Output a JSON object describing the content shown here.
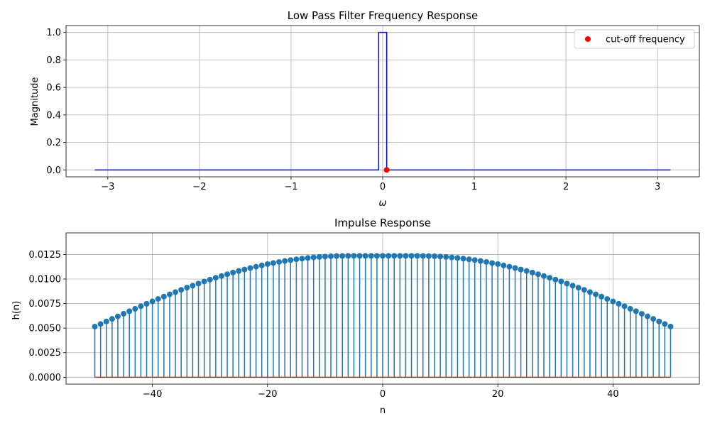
{
  "chart_data": [
    {
      "type": "line",
      "title": "Low Pass Filter Frequency Response",
      "xlabel": "ω",
      "ylabel": "Magnitude",
      "xlim": [
        -3.4558,
        3.4558
      ],
      "ylim": [
        -0.05,
        1.05
      ],
      "xticks": [
        -3,
        -2,
        -1,
        0,
        1,
        2,
        3
      ],
      "xtick_labels": [
        "−3",
        "−2",
        "−1",
        "0",
        "1",
        "2",
        "3"
      ],
      "yticks": [
        0.0,
        0.2,
        0.4,
        0.6,
        0.8,
        1.0
      ],
      "ytick_labels": [
        "0.0",
        "0.2",
        "0.4",
        "0.6",
        "0.8",
        "1.0"
      ],
      "grid": true,
      "series": [
        {
          "color": "#0000ff",
          "x": [
            -3.14159,
            -0.0436,
            -0.0436,
            0.0436,
            0.0436,
            3.14159
          ],
          "y": [
            0,
            0,
            1,
            1,
            0,
            0
          ]
        }
      ],
      "scatter": [
        {
          "name": "cut-off frequency",
          "color": "#ff0000",
          "x": [
            0.0436
          ],
          "y": [
            0
          ]
        }
      ],
      "legend": {
        "position": "top-right",
        "entries": [
          "cut-off frequency"
        ]
      }
    },
    {
      "type": "stem",
      "title": "Impulse Response",
      "xlabel": "n",
      "ylabel": "h(n)",
      "xlim": [
        -55,
        55
      ],
      "ylim": [
        -0.0007,
        0.0147
      ],
      "xticks": [
        -40,
        -20,
        0,
        20,
        40
      ],
      "xtick_labels": [
        "−40",
        "−20",
        "0",
        "20",
        "40"
      ],
      "yticks": [
        0.0,
        0.0025,
        0.005,
        0.0075,
        0.01,
        0.0125
      ],
      "ytick_labels": [
        "0.0000",
        "0.0025",
        "0.0050",
        "0.0075",
        "0.0100",
        "0.0125"
      ],
      "grid": true,
      "stem_color": "#1f77b4",
      "baseline_color": "#d62728",
      "x": [
        -50,
        -49,
        -48,
        -47,
        -46,
        -45,
        -44,
        -43,
        -42,
        -41,
        -40,
        -39,
        -38,
        -37,
        -36,
        -35,
        -34,
        -33,
        -32,
        -31,
        -30,
        -29,
        -28,
        -27,
        -26,
        -25,
        -24,
        -23,
        -22,
        -21,
        -20,
        -19,
        -18,
        -17,
        -16,
        -15,
        -14,
        -13,
        -12,
        -11,
        -10,
        -9,
        -8,
        -7,
        -6,
        -5,
        -4,
        -3,
        -2,
        -1,
        0,
        1,
        2,
        3,
        4,
        5,
        6,
        7,
        8,
        9,
        10,
        11,
        12,
        13,
        14,
        15,
        16,
        17,
        18,
        19,
        20,
        21,
        22,
        23,
        24,
        25,
        26,
        27,
        28,
        29,
        30,
        31,
        32,
        33,
        34,
        35,
        36,
        37,
        38,
        39,
        40,
        41,
        42,
        43,
        44,
        45,
        46,
        47,
        48,
        49,
        50
      ],
      "y": [
        0.00516,
        0.00542,
        0.00568,
        0.00594,
        0.0062,
        0.00646,
        0.00672,
        0.00697,
        0.00723,
        0.00748,
        0.00772,
        0.00797,
        0.00821,
        0.00844,
        0.00867,
        0.0089,
        0.00912,
        0.00933,
        0.00954,
        0.00975,
        0.00994,
        0.01013,
        0.01031,
        0.01049,
        0.01066,
        0.01082,
        0.01097,
        0.01112,
        0.01126,
        0.01139,
        0.01152,
        0.01163,
        0.01174,
        0.01184,
        0.01193,
        0.01201,
        0.01208,
        0.01215,
        0.0122,
        0.01225,
        0.01229,
        0.01232,
        0.01234,
        0.01235,
        0.01236,
        0.01236,
        0.01236,
        0.01236,
        0.01236,
        0.01236,
        0.01236,
        0.01236,
        0.01236,
        0.01236,
        0.01236,
        0.01236,
        0.01236,
        0.01235,
        0.01234,
        0.01232,
        0.01229,
        0.01225,
        0.0122,
        0.01215,
        0.01208,
        0.01201,
        0.01193,
        0.01184,
        0.01174,
        0.01163,
        0.01152,
        0.01139,
        0.01126,
        0.01112,
        0.01097,
        0.01082,
        0.01066,
        0.01049,
        0.01031,
        0.01013,
        0.00994,
        0.00975,
        0.00954,
        0.00933,
        0.00912,
        0.0089,
        0.00867,
        0.00844,
        0.00821,
        0.00797,
        0.00772,
        0.00748,
        0.00723,
        0.00697,
        0.00672,
        0.00646,
        0.0062,
        0.00594,
        0.00568,
        0.00542,
        0.00516
      ]
    }
  ]
}
